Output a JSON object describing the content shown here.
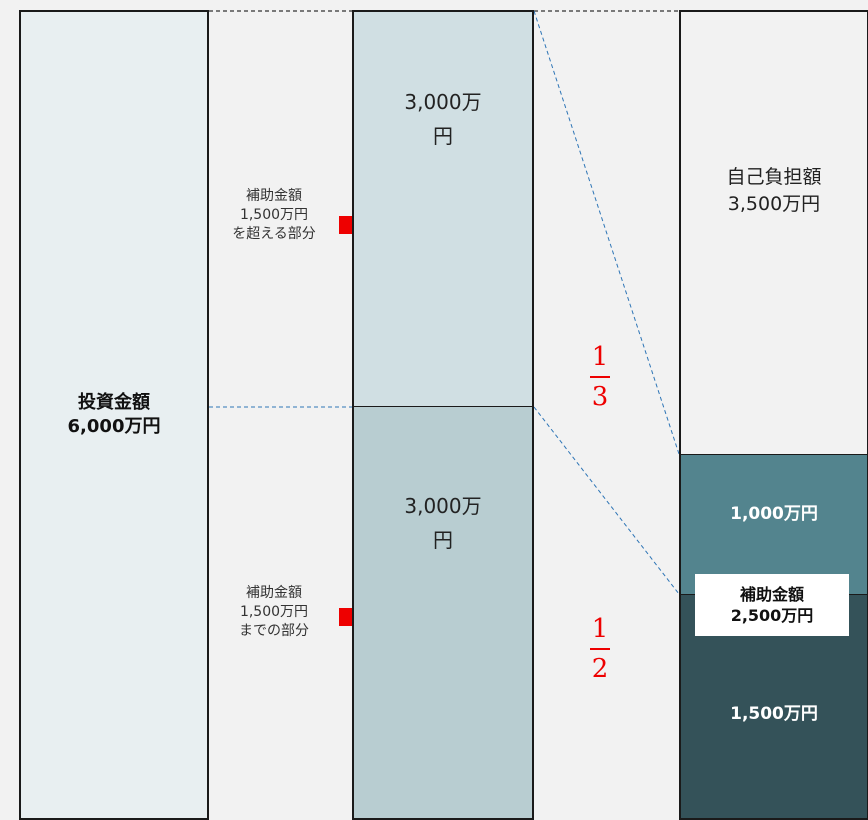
{
  "investment": {
    "title": "投資金額",
    "amount": "6,000万円"
  },
  "upper_segment": {
    "amount": "3,000万\n円",
    "note": "補助金額\n1,500万円\nを超える部分",
    "rate": {
      "numerator": "1",
      "denominator": "3"
    }
  },
  "lower_segment": {
    "amount": "3,000万\n円",
    "note": "補助金額\n1,500万円\nまでの部分",
    "rate": {
      "numerator": "1",
      "denominator": "2"
    }
  },
  "result": {
    "self_burden": "自己負担額\n3,500万円",
    "subsidy_upper": "1,000万円",
    "subsidy_lower": "1,500万円",
    "subsidy_total_title": "補助金額",
    "subsidy_total_amount": "2,500万円"
  },
  "colors": {
    "fraction": "#ee0000",
    "arrow": "#ee0000",
    "guide_line": "#2e75b6",
    "subsidy_upper": "#53848e",
    "subsidy_lower": "#345259"
  }
}
